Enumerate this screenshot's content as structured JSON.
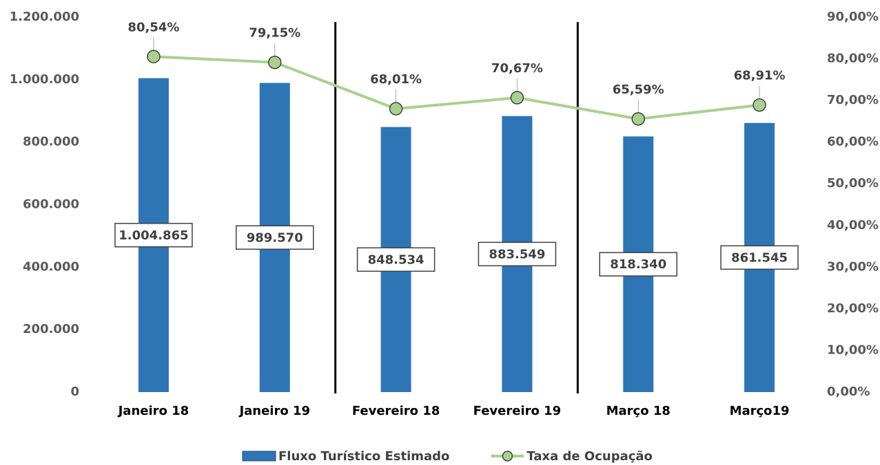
{
  "chart_data": {
    "type": "bar-line",
    "categories": [
      "Janeiro 18",
      "Janeiro 19",
      "Fevereiro 18",
      "Fevereiro 19",
      "Março 18",
      "Março19"
    ],
    "series": [
      {
        "name": "Fluxo Turístico Estimado",
        "color": "#2e75b6",
        "type": "bar",
        "values": [
          1004865,
          989570,
          848534,
          883549,
          818340,
          861545
        ],
        "value_labels": [
          "1.004.865",
          "989.570",
          "848.534",
          "883.549",
          "818.340",
          "861.545"
        ]
      },
      {
        "name": "Taxa de Ocupação",
        "color": "#a9d18e",
        "type": "line",
        "axis": "y2",
        "values": [
          80.54,
          79.15,
          68.01,
          70.67,
          65.59,
          68.91
        ],
        "value_labels": [
          "80,54%",
          "79,15%",
          "68,01%",
          "70,67%",
          "65,59%",
          "68,91%"
        ]
      }
    ],
    "ylim": [
      0,
      1200000
    ],
    "yticks": [
      0,
      {
        "value": 200000,
        "label": "200.000"
      },
      {
        "value": 400000,
        "label": "400.000"
      },
      {
        "value": 600000,
        "label": "600.000"
      },
      {
        "value": 800000,
        "label": "800.000"
      },
      {
        "value": 1000000,
        "label": "1.000.000"
      },
      {
        "value": 1200000,
        "label": "1.200.000"
      }
    ],
    "y2lim": [
      0,
      90
    ],
    "y2ticks": [
      {
        "value": 0,
        "label": "0,00%"
      },
      {
        "value": 10,
        "label": "10,00%"
      },
      {
        "value": 20,
        "label": "20,00%"
      },
      {
        "value": 30,
        "label": "30,00%"
      },
      {
        "value": 40,
        "label": "40,00%"
      },
      {
        "value": 50,
        "label": "50,00%"
      },
      {
        "value": 60,
        "label": "60,00%"
      },
      {
        "value": 70,
        "label": "70,00%"
      },
      {
        "value": 80,
        "label": "80,00%"
      },
      {
        "value": 90,
        "label": "90,00%"
      }
    ],
    "legend": "bottom"
  }
}
